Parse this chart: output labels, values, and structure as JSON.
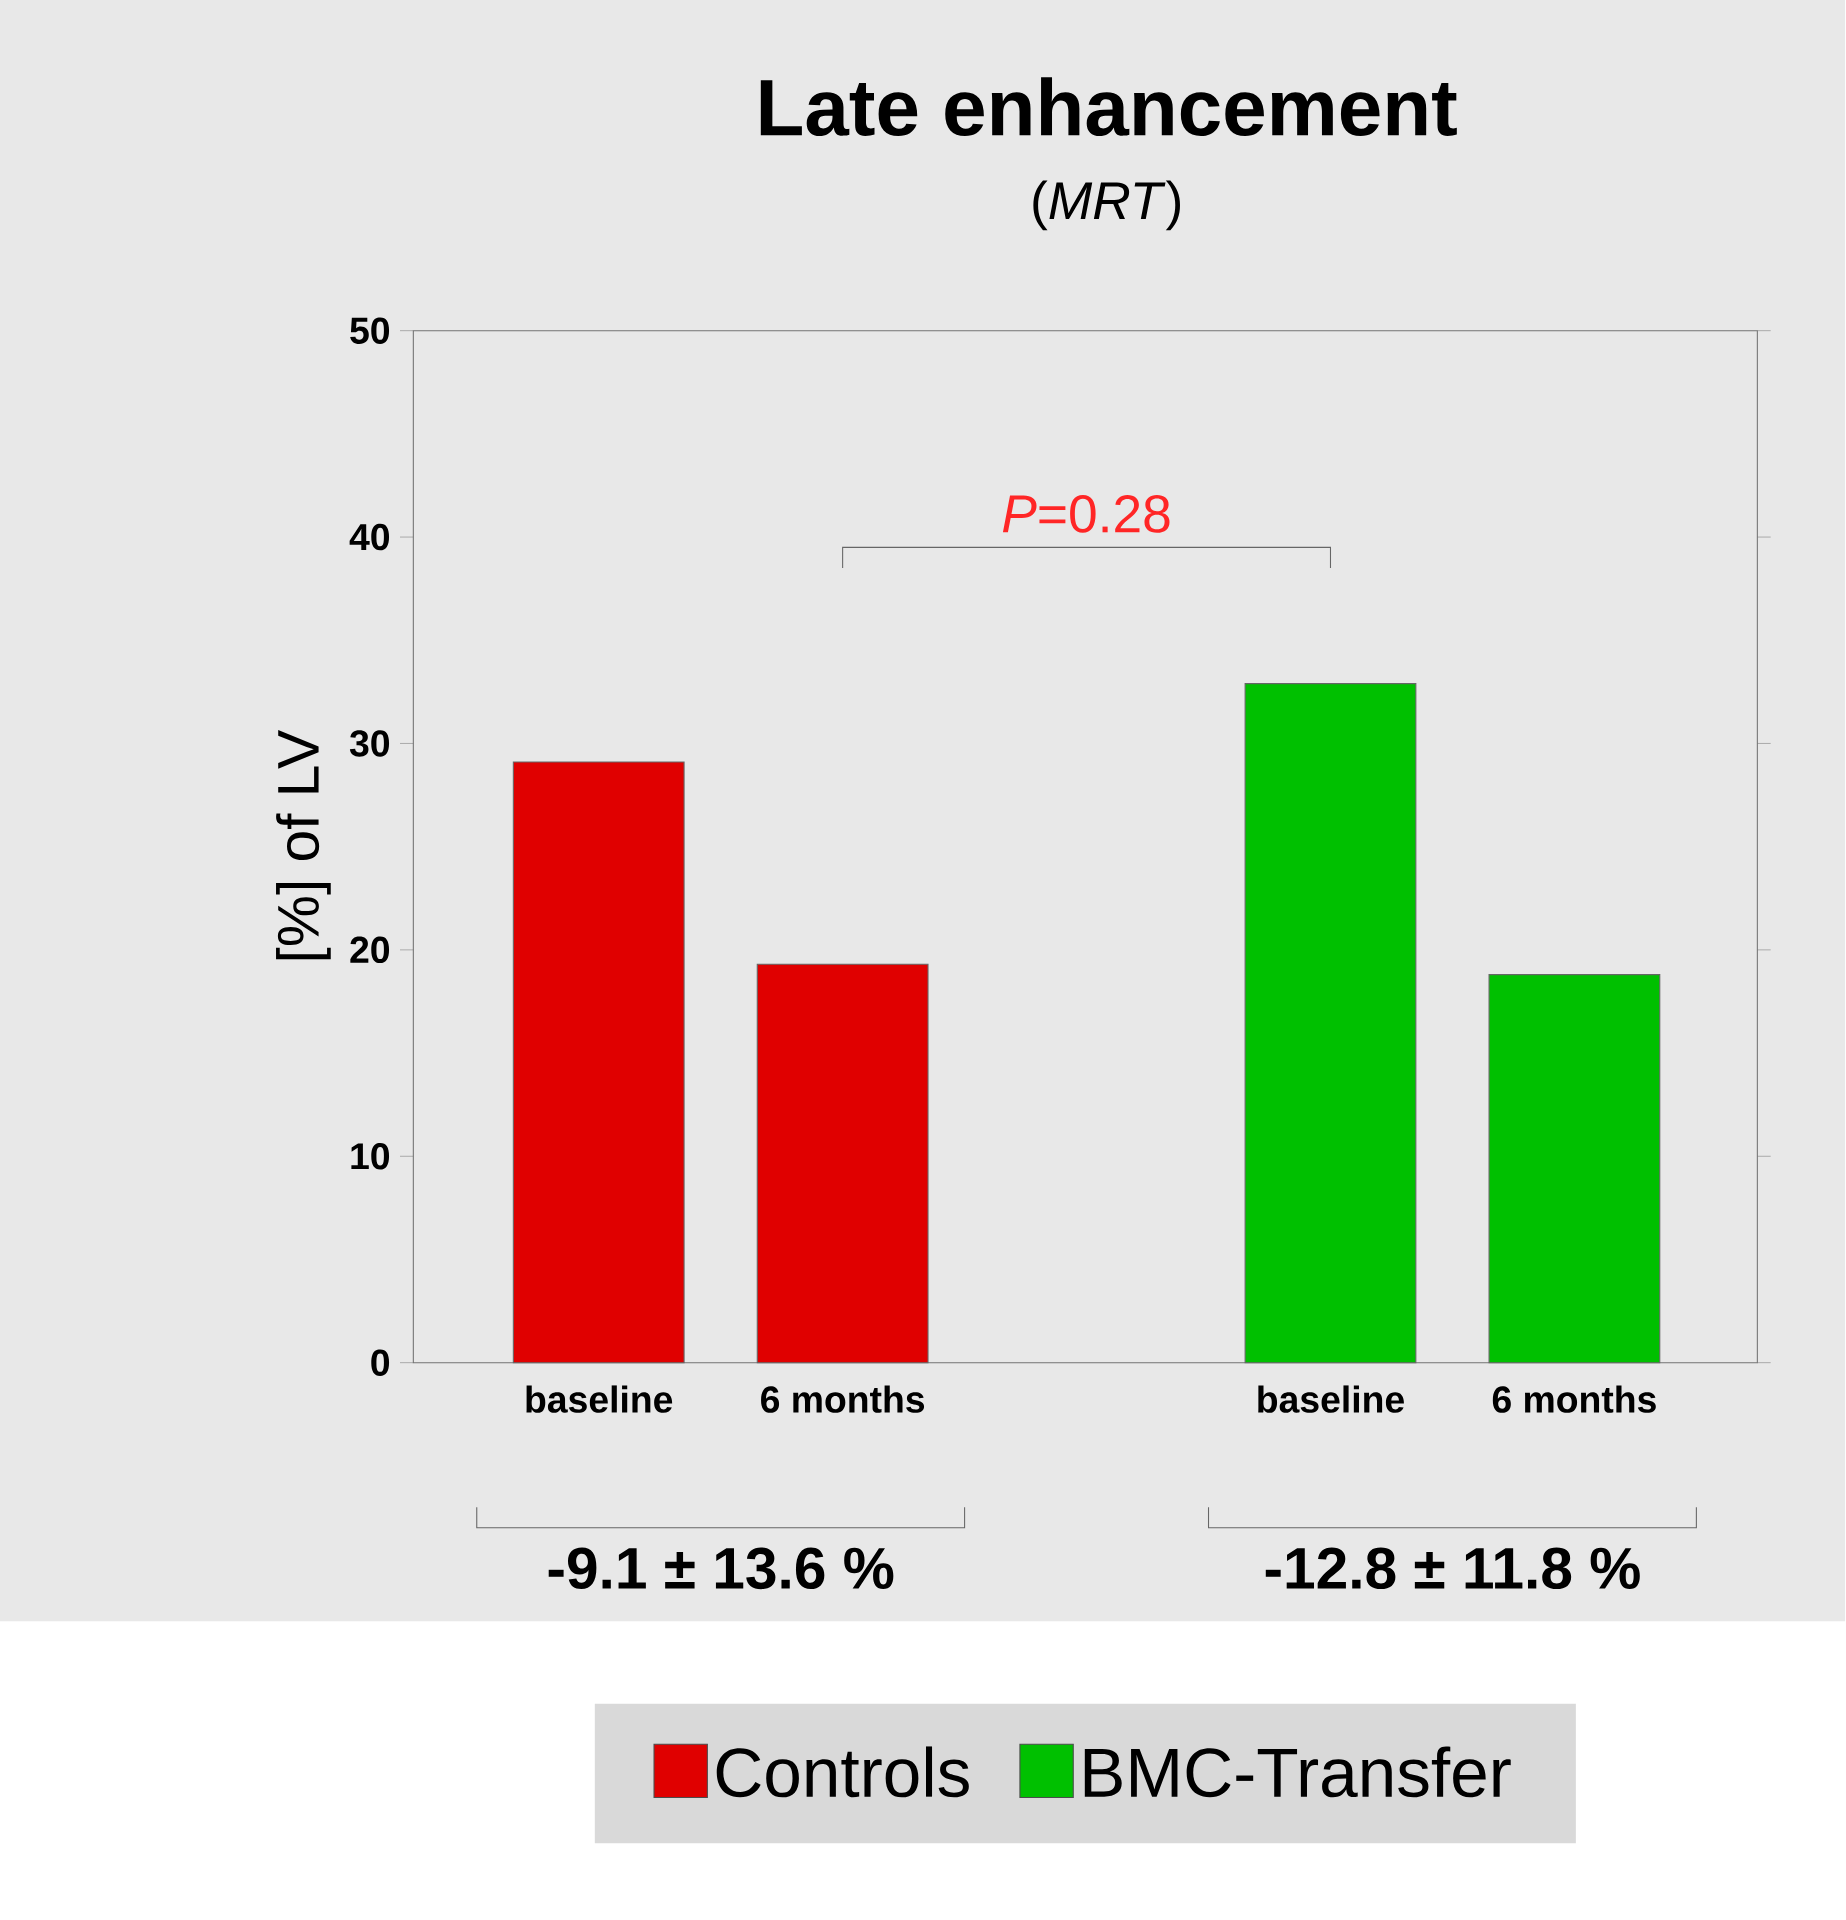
{
  "chart_data": {
    "type": "bar",
    "title": "Late enhancement",
    "subtitle": "(*MRT*)",
    "ylabel": "[%] of LV",
    "categories": [
      "baseline",
      "6 months",
      null,
      "baseline",
      "6 months"
    ],
    "series": [
      {
        "name": "Controls",
        "color": "#e00000",
        "values": [
          29.1,
          19.3,
          null,
          null,
          null
        ]
      },
      {
        "name": "BMC-Transfer",
        "color": "#00c000",
        "values": [
          null,
          null,
          null,
          32.9,
          18.8
        ]
      }
    ],
    "ylim": [
      0,
      50
    ],
    "yticks": [
      0,
      10,
      20,
      30,
      40,
      50
    ],
    "grid": false,
    "legend": "bottom",
    "annotations": [
      "*P*=0.28",
      "-9.1 ± 13.6 %",
      "-12.8 ± 11.8 %"
    ]
  }
}
